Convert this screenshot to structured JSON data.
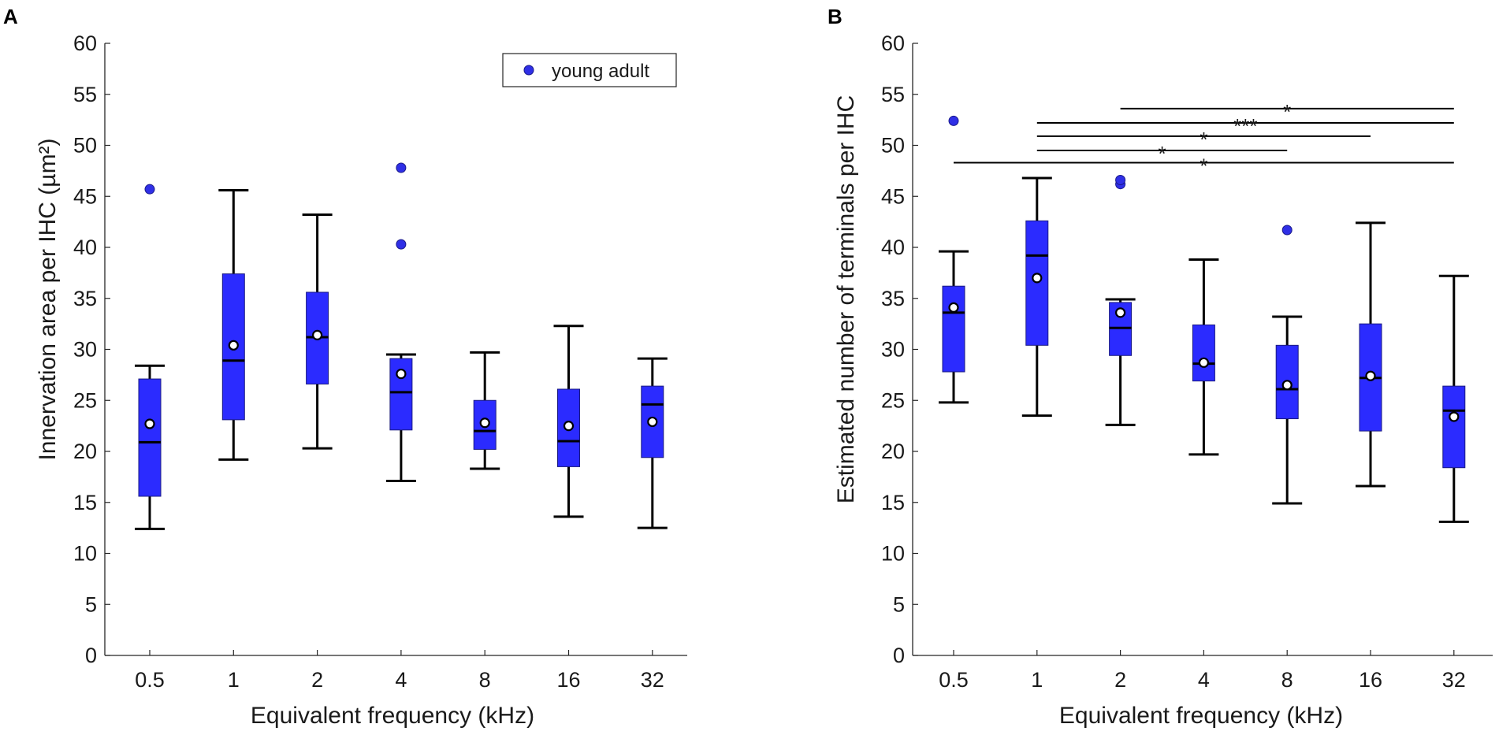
{
  "colors": {
    "box_fill": "#2b2bff",
    "box_stroke": "#000000",
    "mean_fill": "#ffffff",
    "outlier_fill": "#2f2fe6",
    "axis": "#262626"
  },
  "legend": {
    "label": "young adult",
    "marker": "filled-circle"
  },
  "chart_data": [
    {
      "panel": "A",
      "type": "box",
      "title": "",
      "xlabel": "Equivalent frequency (kHz)",
      "ylabel": "Innervation area per IHC (µm²)",
      "ylim": [
        0,
        60
      ],
      "yticks": [
        "0",
        "5",
        "10",
        "15",
        "20",
        "25",
        "30",
        "35",
        "40",
        "45",
        "50",
        "55",
        "60"
      ],
      "categories": [
        "0.5",
        "1",
        "2",
        "4",
        "8",
        "16",
        "32"
      ],
      "series": [
        {
          "name": "young adult",
          "boxes": [
            {
              "whisker_low": 12.4,
              "q1": 15.6,
              "median": 20.9,
              "q3": 27.1,
              "whisker_high": 28.4,
              "mean": 22.7,
              "outliers": [
                45.7
              ]
            },
            {
              "whisker_low": 19.2,
              "q1": 23.1,
              "median": 28.9,
              "q3": 37.4,
              "whisker_high": 45.6,
              "mean": 30.4,
              "outliers": []
            },
            {
              "whisker_low": 20.3,
              "q1": 26.6,
              "median": 31.2,
              "q3": 35.6,
              "whisker_high": 43.2,
              "mean": 31.4,
              "outliers": []
            },
            {
              "whisker_low": 17.1,
              "q1": 22.1,
              "median": 25.8,
              "q3": 29.1,
              "whisker_high": 29.5,
              "mean": 27.6,
              "outliers": [
                40.3,
                47.8
              ]
            },
            {
              "whisker_low": 18.3,
              "q1": 20.2,
              "median": 22.0,
              "q3": 25.0,
              "whisker_high": 29.7,
              "mean": 22.8,
              "outliers": []
            },
            {
              "whisker_low": 13.6,
              "q1": 18.5,
              "median": 21.0,
              "q3": 26.1,
              "whisker_high": 32.3,
              "mean": 22.5,
              "outliers": []
            },
            {
              "whisker_low": 12.5,
              "q1": 19.4,
              "median": 24.6,
              "q3": 26.4,
              "whisker_high": 29.1,
              "mean": 22.9,
              "outliers": []
            }
          ]
        }
      ],
      "significance": []
    },
    {
      "panel": "B",
      "type": "box",
      "title": "",
      "xlabel": "Equivalent frequency (kHz)",
      "ylabel": "Estimated number of terminals per IHC",
      "ylim": [
        0,
        60
      ],
      "yticks": [
        "0",
        "5",
        "10",
        "15",
        "20",
        "25",
        "30",
        "35",
        "40",
        "45",
        "50",
        "55",
        "60"
      ],
      "categories": [
        "0.5",
        "1",
        "2",
        "4",
        "8",
        "16",
        "32"
      ],
      "series": [
        {
          "name": "young adult",
          "boxes": [
            {
              "whisker_low": 24.8,
              "q1": 27.8,
              "median": 33.6,
              "q3": 36.2,
              "whisker_high": 39.6,
              "mean": 34.1,
              "outliers": [
                52.4
              ]
            },
            {
              "whisker_low": 23.5,
              "q1": 30.4,
              "median": 39.2,
              "q3": 42.6,
              "whisker_high": 46.8,
              "mean": 37.0,
              "outliers": []
            },
            {
              "whisker_low": 22.6,
              "q1": 29.4,
              "median": 32.1,
              "q3": 34.6,
              "whisker_high": 34.9,
              "mean": 33.6,
              "outliers": [
                46.2,
                46.6
              ]
            },
            {
              "whisker_low": 19.7,
              "q1": 26.9,
              "median": 28.6,
              "q3": 32.4,
              "whisker_high": 38.8,
              "mean": 28.7,
              "outliers": []
            },
            {
              "whisker_low": 14.9,
              "q1": 23.2,
              "median": 26.1,
              "q3": 30.4,
              "whisker_high": 33.2,
              "mean": 26.5,
              "outliers": [
                41.7
              ]
            },
            {
              "whisker_low": 16.6,
              "q1": 22.0,
              "median": 27.2,
              "q3": 32.5,
              "whisker_high": 42.4,
              "mean": 27.4,
              "outliers": []
            },
            {
              "whisker_low": 13.1,
              "q1": 18.4,
              "median": 24.0,
              "q3": 26.4,
              "whisker_high": 37.2,
              "mean": 23.4,
              "outliers": []
            }
          ]
        }
      ],
      "significance": [
        {
          "from": "2",
          "to": "32",
          "y": 53.6,
          "label": "*"
        },
        {
          "from": "1",
          "to": "32",
          "y": 52.2,
          "label": "***"
        },
        {
          "from": "1",
          "to": "16",
          "y": 50.9,
          "label": "*"
        },
        {
          "from": "1",
          "to": "8",
          "y": 49.5,
          "label": "*"
        },
        {
          "from": "0.5",
          "to": "32",
          "y": 48.3,
          "label": "*"
        }
      ]
    }
  ]
}
